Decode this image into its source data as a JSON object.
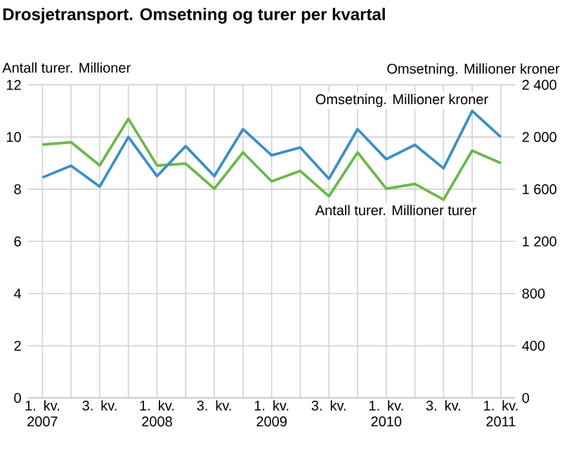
{
  "chart_data": {
    "type": "line",
    "title": "Drosjetransport. Omsetning og turer per kvartal",
    "ylabel": "Antall turer. Millioner",
    "y2label": "Omsetning. Millioner kroner",
    "categories": [
      "1. kv. 2007",
      null,
      "3. kv.",
      null,
      "1. kv. 2008",
      null,
      "3. kv.",
      null,
      "1. kv. 2009",
      null,
      "3. kv.",
      null,
      "1. kv. 2010",
      null,
      "3. kv.",
      null,
      "1. kv. 2011"
    ],
    "series": [
      {
        "name": "Omsetning. Millioner kroner",
        "color": "#3a8fc8",
        "axis": "y2",
        "values": [
          1690,
          1780,
          1620,
          2000,
          1700,
          1930,
          1700,
          2060,
          1860,
          1920,
          1680,
          2060,
          1830,
          1940,
          1760,
          2200,
          2000
        ]
      },
      {
        "name": "Antall turer. Millioner turer",
        "color": "#6ab84a",
        "values": [
          9.71,
          9.8,
          8.91,
          10.7,
          8.91,
          8.98,
          8.02,
          9.41,
          8.3,
          8.7,
          7.73,
          9.41,
          8.02,
          8.2,
          7.6,
          9.48,
          9.0
        ]
      }
    ],
    "ylim": [
      0,
      12
    ],
    "yticks": [
      0,
      2,
      4,
      6,
      8,
      10,
      12
    ],
    "y2lim": [
      0,
      2400
    ],
    "y2ticks": [
      0,
      400,
      800,
      {
        "value": 1200,
        "label": "1 200"
      },
      {
        "value": 1600,
        "label": "1 600"
      },
      {
        "value": 2000,
        "label": "2 000"
      },
      {
        "value": 2400,
        "label": "2 400"
      }
    ],
    "grid": true
  }
}
